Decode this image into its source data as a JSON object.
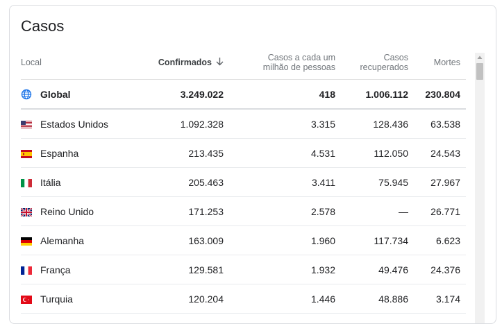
{
  "card": {
    "title": "Casos"
  },
  "headers": {
    "local": "Local",
    "confirmed": "Confirmados",
    "per_million_line1": "Casos a cada um",
    "per_million_line2": "milhão de pessoas",
    "recovered_line1": "Casos",
    "recovered_line2": "recuperados",
    "deaths": "Mortes"
  },
  "global": {
    "name": "Global",
    "confirmed": "3.249.022",
    "per_million": "418",
    "recovered": "1.006.112",
    "deaths": "230.804"
  },
  "rows": [
    {
      "name": "Estados Unidos",
      "confirmed": "1.092.328",
      "per_million": "3.315",
      "recovered": "128.436",
      "deaths": "63.538",
      "flag": "us-flag-icon"
    },
    {
      "name": "Espanha",
      "confirmed": "213.435",
      "per_million": "4.531",
      "recovered": "112.050",
      "deaths": "24.543",
      "flag": "es-flag-icon"
    },
    {
      "name": "Itália",
      "confirmed": "205.463",
      "per_million": "3.411",
      "recovered": "75.945",
      "deaths": "27.967",
      "flag": "it-flag-icon"
    },
    {
      "name": "Reino Unido",
      "confirmed": "171.253",
      "per_million": "2.578",
      "recovered": "—",
      "deaths": "26.771",
      "flag": "uk-flag-icon"
    },
    {
      "name": "Alemanha",
      "confirmed": "163.009",
      "per_million": "1.960",
      "recovered": "117.734",
      "deaths": "6.623",
      "flag": "de-flag-icon"
    },
    {
      "name": "França",
      "confirmed": "129.581",
      "per_million": "1.932",
      "recovered": "49.476",
      "deaths": "24.376",
      "flag": "fr-flag-icon"
    },
    {
      "name": "Turquia",
      "confirmed": "120.204",
      "per_million": "1.446",
      "recovered": "48.886",
      "deaths": "3.174",
      "flag": "tr-flag-icon"
    }
  ],
  "colors": {
    "globe": "#1a73e8",
    "border": "#dadce0",
    "header_text": "#70757a"
  }
}
